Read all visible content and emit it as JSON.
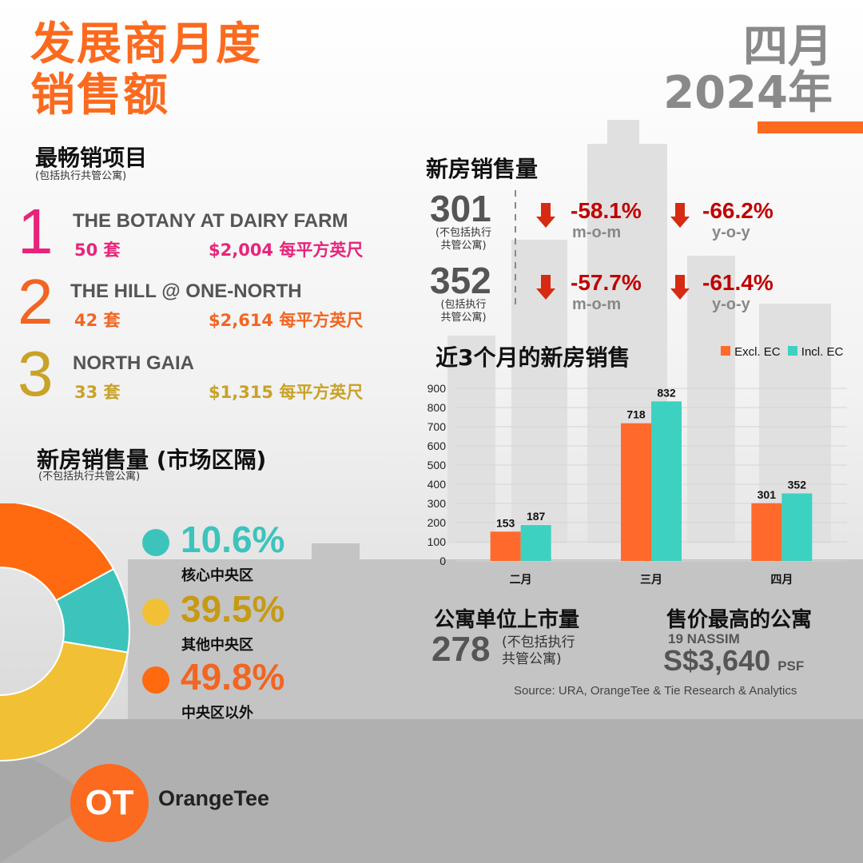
{
  "title": {
    "line1": "发展商月度",
    "line2": "销售额"
  },
  "period": {
    "month": "四月",
    "year": "2024年"
  },
  "top_projects": {
    "heading": "最畅销项目",
    "note": "(包括执行共管公寓)",
    "items": [
      {
        "rank": "1",
        "name": "THE BOTANY AT DAIRY FARM",
        "units": "50 套",
        "price": "$2,004 每平方英尺",
        "color": "#e8247a"
      },
      {
        "rank": "2",
        "name": "THE HILL @ ONE-NORTH",
        "units": "42 套",
        "price": "$2,614 每平方英尺",
        "color": "#f26522"
      },
      {
        "rank": "3",
        "name": "NORTH GAIA",
        "units": "33 套",
        "price": "$1,315 每平方英尺",
        "color": "#c9a227"
      }
    ]
  },
  "new_sales": {
    "heading": "新房销售量",
    "rows": [
      {
        "value": "301",
        "note": "(不包括执行\n共管公寓)",
        "mom": "-58.1%",
        "mom_label": "m-o-m",
        "yoy": "-66.2%",
        "yoy_label": "y-o-y"
      },
      {
        "value": "352",
        "note": "(包括执行\n共管公寓)",
        "mom": "-57.7%",
        "mom_label": "m-o-m",
        "yoy": "-61.4%",
        "yoy_label": "y-o-y"
      }
    ]
  },
  "segment": {
    "heading": "新房销售量 (市场区隔)",
    "note": "(不包括执行共管公寓)",
    "items": [
      {
        "pct": "10.6%",
        "label": "核心中央区",
        "color": "#3cc4bc",
        "text_color": "#3cc4bc",
        "value": 10.6
      },
      {
        "pct": "39.5%",
        "label": "其他中央区",
        "color": "#f2c035",
        "text_color": "#c69a14",
        "value": 39.5
      },
      {
        "pct": "49.8%",
        "label": "中央区以外",
        "color": "#ff6a10",
        "text_color": "#f26522",
        "value": 49.8
      }
    ]
  },
  "chart_data": {
    "type": "bar",
    "title": "近3个月的新房销售",
    "categories": [
      "二月",
      "三月",
      "四月"
    ],
    "series": [
      {
        "name": "Excl. EC",
        "values": [
          153,
          718,
          301
        ],
        "color": "#ff6a2c"
      },
      {
        "name": "Incl. EC",
        "values": [
          187,
          832,
          352
        ],
        "color": "#3dd1c1"
      }
    ],
    "ylim": [
      0,
      900
    ],
    "yticks": [
      "0",
      "100",
      "200",
      "300",
      "400",
      "500",
      "600",
      "700",
      "800",
      "900"
    ],
    "grid": true,
    "legend": "top-right"
  },
  "launched": {
    "heading": "公寓单位上市量",
    "value": "278",
    "note": "(不包括执行\n共管公寓)"
  },
  "highest": {
    "heading": "售价最高的公寓",
    "name": "19 NASSIM",
    "price": "S$3,640",
    "unit": "PSF"
  },
  "source": "Source: URA, OrangeTee  & Tie Research  & Analytics",
  "logo": {
    "glyph": "OT",
    "text": "OrangeTee"
  }
}
